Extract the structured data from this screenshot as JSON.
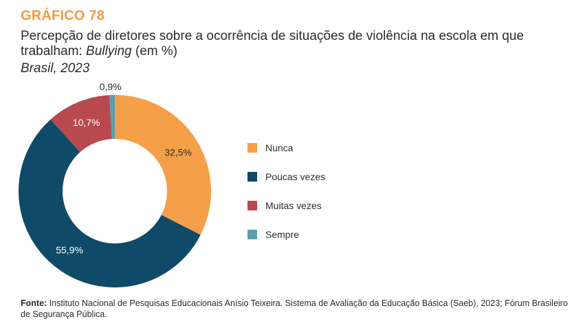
{
  "header": {
    "grafico_label": "GRÁFICO 78",
    "title_main": "Percepção de diretores sobre a ocorrência de situações de violência na escola em que trabalham: ",
    "title_emphasis": "Bullying",
    "title_suffix": " (em %)",
    "subtitle": "Brasil, 2023"
  },
  "chart_data": {
    "type": "pie",
    "donut": true,
    "unit": "%",
    "slices": [
      {
        "name": "Nunca",
        "value": 32.5,
        "label": "32,5%",
        "color": "#f5a048",
        "label_color": "#2b2b2b"
      },
      {
        "name": "Poucas vezes",
        "value": 55.9,
        "label": "55,9%",
        "color": "#0f4a68",
        "label_color": "#ffffff"
      },
      {
        "name": "Muitas vezes",
        "value": 10.7,
        "label": "10,7%",
        "color": "#b8494f",
        "label_color": "#ffffff"
      },
      {
        "name": "Sempre",
        "value": 0.9,
        "label": "0,9%",
        "color": "#5b9faa",
        "label_color": "#2b2b2b"
      }
    ],
    "legend_placement": "right"
  },
  "footer": {
    "source_label": "Fonte:",
    "source_text": " Instituto Nacional de Pesquisas Educacionais Anísio Teixeira. Sistema de Avaliação da Educação Básica (Saeb), 2023; Fórum Brasileiro de Segurança Pública."
  }
}
